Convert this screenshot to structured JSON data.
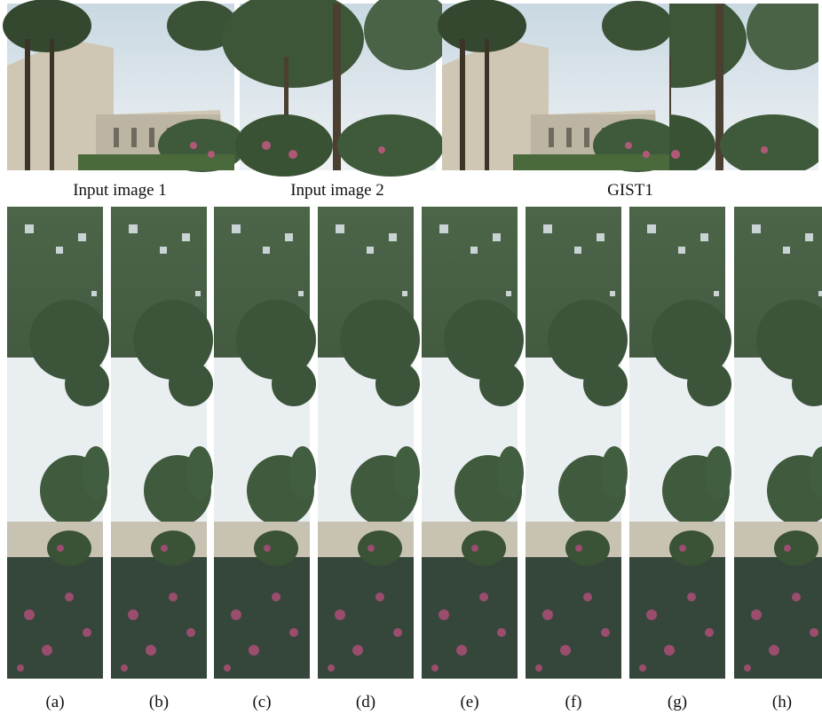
{
  "top_captions": [
    "Input image 1",
    "Input image 2",
    "GIST1"
  ],
  "strip_labels": [
    "(a)",
    "(b)",
    "(c)",
    "(d)",
    "(e)",
    "(f)",
    "(g)",
    "(h)"
  ]
}
